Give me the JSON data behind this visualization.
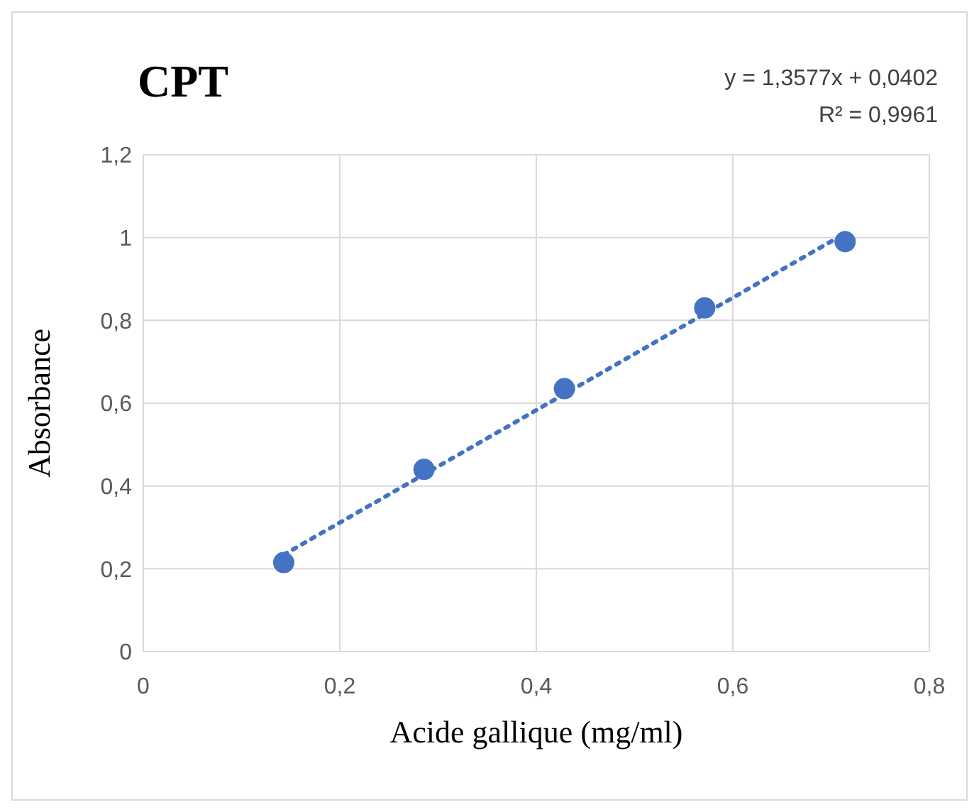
{
  "chart_data": {
    "type": "scatter",
    "title": "CPT",
    "xlabel": "Acide gallique (mg/ml)",
    "ylabel": "Absorbance",
    "annotations": [
      "y = 1,3577x + 0,0402",
      "R² = 0,9961"
    ],
    "series": [
      {
        "color": "#4472c4",
        "marker": "circle",
        "x": [
          0.1429,
          0.2857,
          0.4286,
          0.5714,
          0.7143
        ],
        "values": [
          0.215,
          0.44,
          0.635,
          0.83,
          0.99
        ]
      },
      {
        "type": "line",
        "color": "#4472c4",
        "line_style": "dotted",
        "x": [
          0.1429,
          0.7143
        ],
        "values": [
          0.234,
          1.01
        ]
      }
    ],
    "xlim": [
      0,
      0.8
    ],
    "xticks": [
      0,
      {
        "value": 0.2,
        "label": "0,2"
      },
      {
        "value": 0.4,
        "label": "0,4"
      },
      {
        "value": 0.6,
        "label": "0,6"
      },
      {
        "value": 0.8,
        "label": "0,8"
      }
    ],
    "ylim": [
      0,
      1.2
    ],
    "yticks": [
      0,
      {
        "value": 0.2,
        "label": "0,2"
      },
      {
        "value": 0.4,
        "label": "0,4"
      },
      {
        "value": 0.6,
        "label": "0,6"
      },
      {
        "value": 0.8,
        "label": "0,8"
      },
      1,
      {
        "value": 1.2,
        "label": "1,2"
      }
    ],
    "grid": true,
    "legend": false
  }
}
